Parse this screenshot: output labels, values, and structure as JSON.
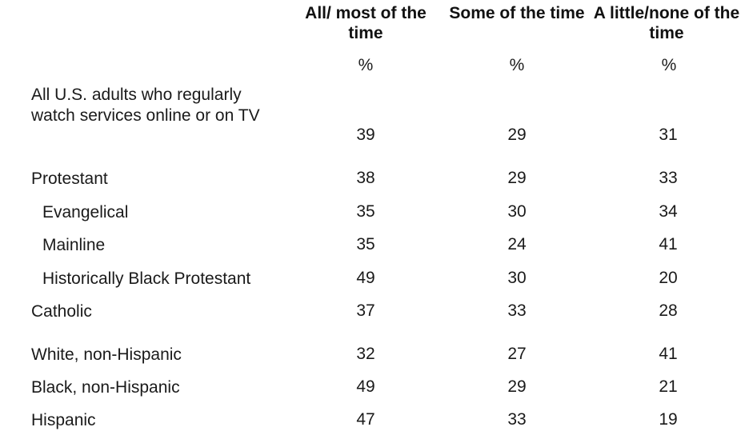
{
  "chart_data": {
    "type": "table",
    "columns": [
      "All/ most of the time",
      "Some of the time",
      "A little/none of the time"
    ],
    "units": [
      "%",
      "%",
      "%"
    ],
    "rows": [
      {
        "label": "All U.S. adults who regularly watch services online or on TV",
        "values": [
          "39",
          "29",
          "31"
        ],
        "indent": false
      },
      {
        "label": "Protestant",
        "values": [
          "38",
          "29",
          "33"
        ],
        "indent": false
      },
      {
        "label": "Evangelical",
        "values": [
          "35",
          "30",
          "34"
        ],
        "indent": true
      },
      {
        "label": "Mainline",
        "values": [
          "35",
          "24",
          "41"
        ],
        "indent": true
      },
      {
        "label": "Historically Black Protestant",
        "values": [
          "49",
          "30",
          "20"
        ],
        "indent": true
      },
      {
        "label": "Catholic",
        "values": [
          "37",
          "33",
          "28"
        ],
        "indent": false
      },
      {
        "label": "White, non-Hispanic",
        "values": [
          "32",
          "27",
          "41"
        ],
        "indent": false
      },
      {
        "label": "Black, non-Hispanic",
        "values": [
          "49",
          "29",
          "21"
        ],
        "indent": false
      },
      {
        "label": "Hispanic",
        "values": [
          "47",
          "33",
          "19"
        ],
        "indent": false
      }
    ]
  }
}
